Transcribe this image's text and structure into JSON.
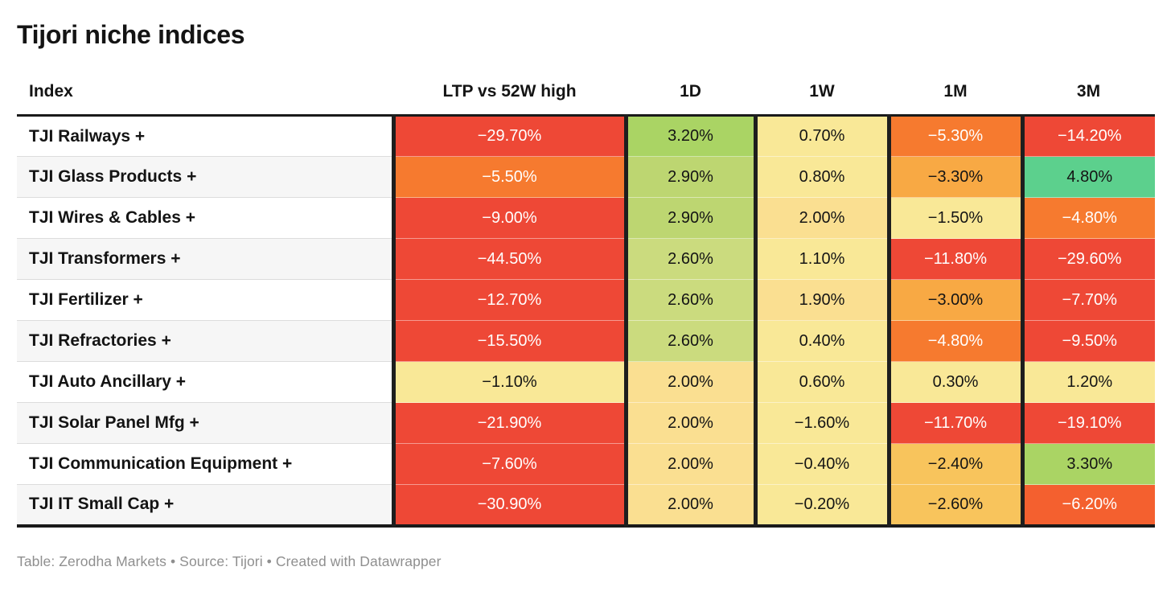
{
  "title": "Tijori niche indices",
  "footer": "Table: Zerodha Markets • Source: Tijori • Created with Datawrapper",
  "columns": [
    "Index",
    "LTP vs 52W high",
    "1D",
    "1W",
    "1M",
    "3M"
  ],
  "palette": {
    "red": {
      "bg": "#ee4836",
      "fg": "#ffffff"
    },
    "orangeRed": {
      "bg": "#f4602f",
      "fg": "#ffffff"
    },
    "orange": {
      "bg": "#f67a2f",
      "fg": "#ffffff"
    },
    "amber": {
      "bg": "#f8a944",
      "fg": "#141414"
    },
    "gold": {
      "bg": "#f8c45c",
      "fg": "#141414"
    },
    "peach": {
      "bg": "#fadf91",
      "fg": "#141414"
    },
    "paleYellow": {
      "bg": "#f9e897",
      "fg": "#141414"
    },
    "yellowGreen": {
      "bg": "#cbdb7e",
      "fg": "#141414"
    },
    "lightGreen": {
      "bg": "#bdd671",
      "fg": "#141414"
    },
    "green": {
      "bg": "#aad464",
      "fg": "#141414"
    },
    "emerald": {
      "bg": "#5cd08d",
      "fg": "#141414"
    }
  },
  "rows": [
    {
      "index": "TJI Railways +",
      "cells": [
        {
          "v": "−29.70%",
          "c": "red"
        },
        {
          "v": "3.20%",
          "c": "green"
        },
        {
          "v": "0.70%",
          "c": "paleYellow"
        },
        {
          "v": "−5.30%",
          "c": "orange"
        },
        {
          "v": "−14.20%",
          "c": "red"
        }
      ]
    },
    {
      "index": "TJI Glass Products +",
      "cells": [
        {
          "v": "−5.50%",
          "c": "orange"
        },
        {
          "v": "2.90%",
          "c": "lightGreen"
        },
        {
          "v": "0.80%",
          "c": "paleYellow"
        },
        {
          "v": "−3.30%",
          "c": "amber"
        },
        {
          "v": "4.80%",
          "c": "emerald"
        }
      ]
    },
    {
      "index": "TJI Wires & Cables +",
      "cells": [
        {
          "v": "−9.00%",
          "c": "red"
        },
        {
          "v": "2.90%",
          "c": "lightGreen"
        },
        {
          "v": "2.00%",
          "c": "peach"
        },
        {
          "v": "−1.50%",
          "c": "paleYellow"
        },
        {
          "v": "−4.80%",
          "c": "orange"
        }
      ]
    },
    {
      "index": "TJI Transformers +",
      "cells": [
        {
          "v": "−44.50%",
          "c": "red"
        },
        {
          "v": "2.60%",
          "c": "yellowGreen"
        },
        {
          "v": "1.10%",
          "c": "paleYellow"
        },
        {
          "v": "−11.80%",
          "c": "red"
        },
        {
          "v": "−29.60%",
          "c": "red"
        }
      ]
    },
    {
      "index": "TJI Fertilizer +",
      "cells": [
        {
          "v": "−12.70%",
          "c": "red"
        },
        {
          "v": "2.60%",
          "c": "yellowGreen"
        },
        {
          "v": "1.90%",
          "c": "peach"
        },
        {
          "v": "−3.00%",
          "c": "amber"
        },
        {
          "v": "−7.70%",
          "c": "red"
        }
      ]
    },
    {
      "index": "TJI Refractories +",
      "cells": [
        {
          "v": "−15.50%",
          "c": "red"
        },
        {
          "v": "2.60%",
          "c": "yellowGreen"
        },
        {
          "v": "0.40%",
          "c": "paleYellow"
        },
        {
          "v": "−4.80%",
          "c": "orange"
        },
        {
          "v": "−9.50%",
          "c": "red"
        }
      ]
    },
    {
      "index": "TJI Auto Ancillary +",
      "cells": [
        {
          "v": "−1.10%",
          "c": "paleYellow"
        },
        {
          "v": "2.00%",
          "c": "peach"
        },
        {
          "v": "0.60%",
          "c": "paleYellow"
        },
        {
          "v": "0.30%",
          "c": "paleYellow"
        },
        {
          "v": "1.20%",
          "c": "paleYellow"
        }
      ]
    },
    {
      "index": "TJI Solar Panel Mfg +",
      "cells": [
        {
          "v": "−21.90%",
          "c": "red"
        },
        {
          "v": "2.00%",
          "c": "peach"
        },
        {
          "v": "−1.60%",
          "c": "paleYellow"
        },
        {
          "v": "−11.70%",
          "c": "red"
        },
        {
          "v": "−19.10%",
          "c": "red"
        }
      ]
    },
    {
      "index": "TJI Communication Equipment +",
      "cells": [
        {
          "v": "−7.60%",
          "c": "red"
        },
        {
          "v": "2.00%",
          "c": "peach"
        },
        {
          "v": "−0.40%",
          "c": "paleYellow"
        },
        {
          "v": "−2.40%",
          "c": "gold"
        },
        {
          "v": "3.30%",
          "c": "green"
        }
      ]
    },
    {
      "index": "TJI IT Small Cap +",
      "cells": [
        {
          "v": "−30.90%",
          "c": "red"
        },
        {
          "v": "2.00%",
          "c": "peach"
        },
        {
          "v": "−0.20%",
          "c": "paleYellow"
        },
        {
          "v": "−2.60%",
          "c": "gold"
        },
        {
          "v": "−6.20%",
          "c": "orangeRed"
        }
      ]
    }
  ],
  "chart_data": {
    "type": "table",
    "title": "Tijori niche indices",
    "columns": [
      "Index",
      "LTP vs 52W high",
      "1D",
      "1W",
      "1M",
      "3M"
    ],
    "units": "percent",
    "color_scale": "diverging red-yellow-green heatmap on cell values",
    "rows": [
      [
        "TJI Railways +",
        -29.7,
        3.2,
        0.7,
        -5.3,
        -14.2
      ],
      [
        "TJI Glass Products +",
        -5.5,
        2.9,
        0.8,
        -3.3,
        4.8
      ],
      [
        "TJI Wires & Cables +",
        -9.0,
        2.9,
        2.0,
        -1.5,
        -4.8
      ],
      [
        "TJI Transformers +",
        -44.5,
        2.6,
        1.1,
        -11.8,
        -29.6
      ],
      [
        "TJI Fertilizer +",
        -12.7,
        2.6,
        1.9,
        -3.0,
        -7.7
      ],
      [
        "TJI Refractories +",
        -15.5,
        2.6,
        0.4,
        -4.8,
        -9.5
      ],
      [
        "TJI Auto Ancillary +",
        -1.1,
        2.0,
        0.6,
        0.3,
        1.2
      ],
      [
        "TJI Solar Panel Mfg +",
        -21.9,
        2.0,
        -1.6,
        -11.7,
        -19.1
      ],
      [
        "TJI Communication Equipment +",
        -7.6,
        2.0,
        -0.4,
        -2.4,
        3.3
      ],
      [
        "TJI IT Small Cap +",
        -30.9,
        2.0,
        -0.2,
        -2.6,
        -6.2
      ]
    ]
  }
}
